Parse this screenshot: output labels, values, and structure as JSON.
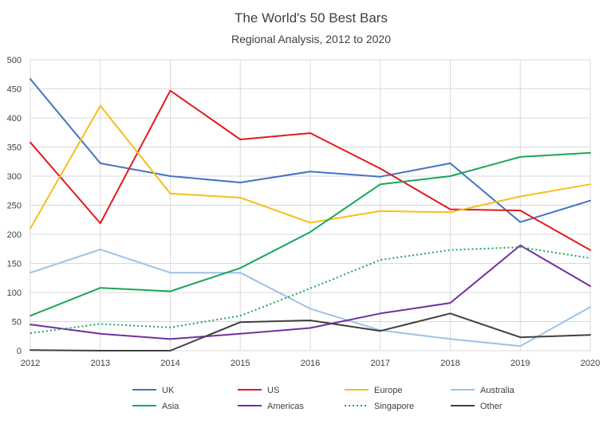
{
  "chart_data": {
    "type": "line",
    "title": "The World's 50 Best Bars",
    "subtitle": "Regional Analysis, 2012 to 2020",
    "x": [
      "2012",
      "2013",
      "2014",
      "2015",
      "2016",
      "2017",
      "2018",
      "2019",
      "2020"
    ],
    "ylim": [
      0,
      500
    ],
    "yticks": [
      0,
      50,
      100,
      150,
      200,
      250,
      300,
      350,
      400,
      450,
      500
    ],
    "grid": true,
    "legend_position": "bottom",
    "series": [
      {
        "name": "UK",
        "color": "#4472C4",
        "dash": "solid",
        "values": [
          467,
          322,
          300,
          289,
          308,
          299,
          322,
          221,
          258
        ]
      },
      {
        "name": "US",
        "color": "#E31A1C",
        "dash": "solid",
        "values": [
          358,
          219,
          447,
          363,
          374,
          313,
          243,
          241,
          173
        ]
      },
      {
        "name": "Europe",
        "color": "#F5BE1B",
        "dash": "solid",
        "values": [
          210,
          421,
          270,
          263,
          220,
          240,
          238,
          265,
          286
        ]
      },
      {
        "name": "Australia",
        "color": "#9DC3E6",
        "dash": "solid",
        "values": [
          134,
          174,
          134,
          134,
          72,
          35,
          20,
          8,
          75
        ]
      },
      {
        "name": "Asia",
        "color": "#1AA65A",
        "dash": "solid",
        "values": [
          60,
          108,
          102,
          142,
          204,
          286,
          300,
          333,
          340
        ]
      },
      {
        "name": "Americas",
        "color": "#7030A0",
        "dash": "solid",
        "values": [
          45,
          29,
          20,
          29,
          39,
          64,
          82,
          181,
          111
        ]
      },
      {
        "name": "Singapore",
        "color": "#1AA65A",
        "dash": "dotted",
        "values": [
          30,
          46,
          40,
          60,
          107,
          156,
          173,
          178,
          159
        ]
      },
      {
        "name": "Other",
        "color": "#404040",
        "dash": "solid",
        "values": [
          1,
          0,
          0,
          49,
          52,
          34,
          64,
          23,
          27
        ]
      }
    ]
  }
}
